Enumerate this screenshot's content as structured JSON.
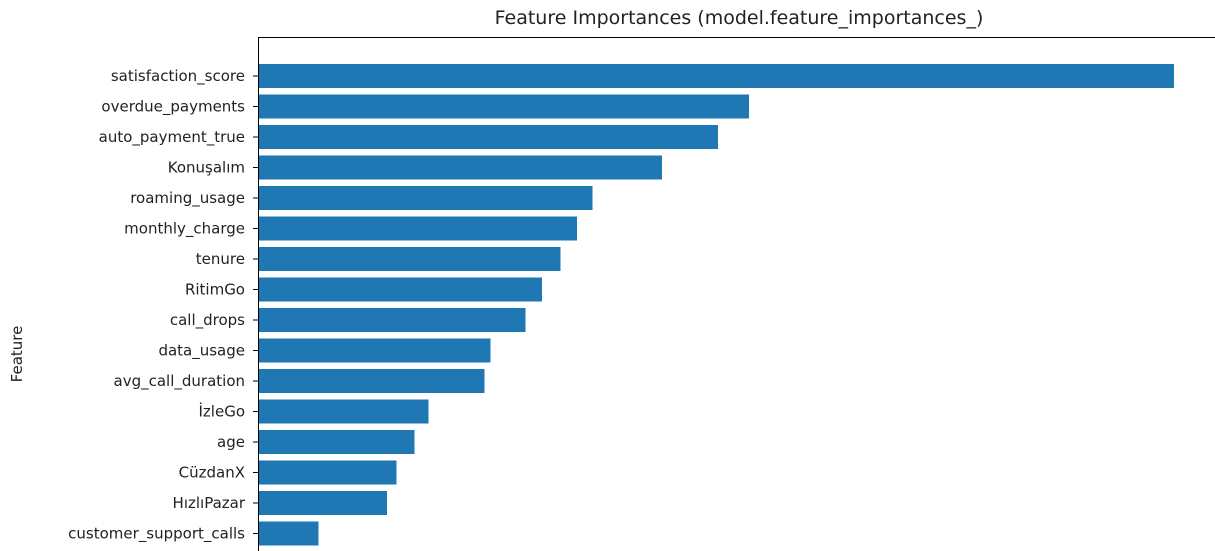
{
  "chart_data": {
    "type": "bar",
    "orientation": "horizontal",
    "title": "Feature Importances (model.feature_importances_)",
    "xlabel": "",
    "ylabel": "Feature",
    "categories": [
      "satisfaction_score",
      "overdue_payments",
      "auto_payment_true",
      "Konuşalım",
      "roaming_usage",
      "monthly_charge",
      "tenure",
      "RitimGo",
      "call_drops",
      "data_usage",
      "avg_call_duration",
      "İzleGo",
      "age",
      "CüzdanX",
      "HızlıPazar",
      "customer_support_calls"
    ],
    "values": [
      1.0,
      0.536,
      0.502,
      0.441,
      0.365,
      0.348,
      0.33,
      0.31,
      0.292,
      0.254,
      0.247,
      0.186,
      0.171,
      0.151,
      0.141,
      0.066
    ],
    "xlim": [
      0,
      1.05
    ],
    "grid": false,
    "legend": "none",
    "bar_color": "#1f77b4"
  }
}
